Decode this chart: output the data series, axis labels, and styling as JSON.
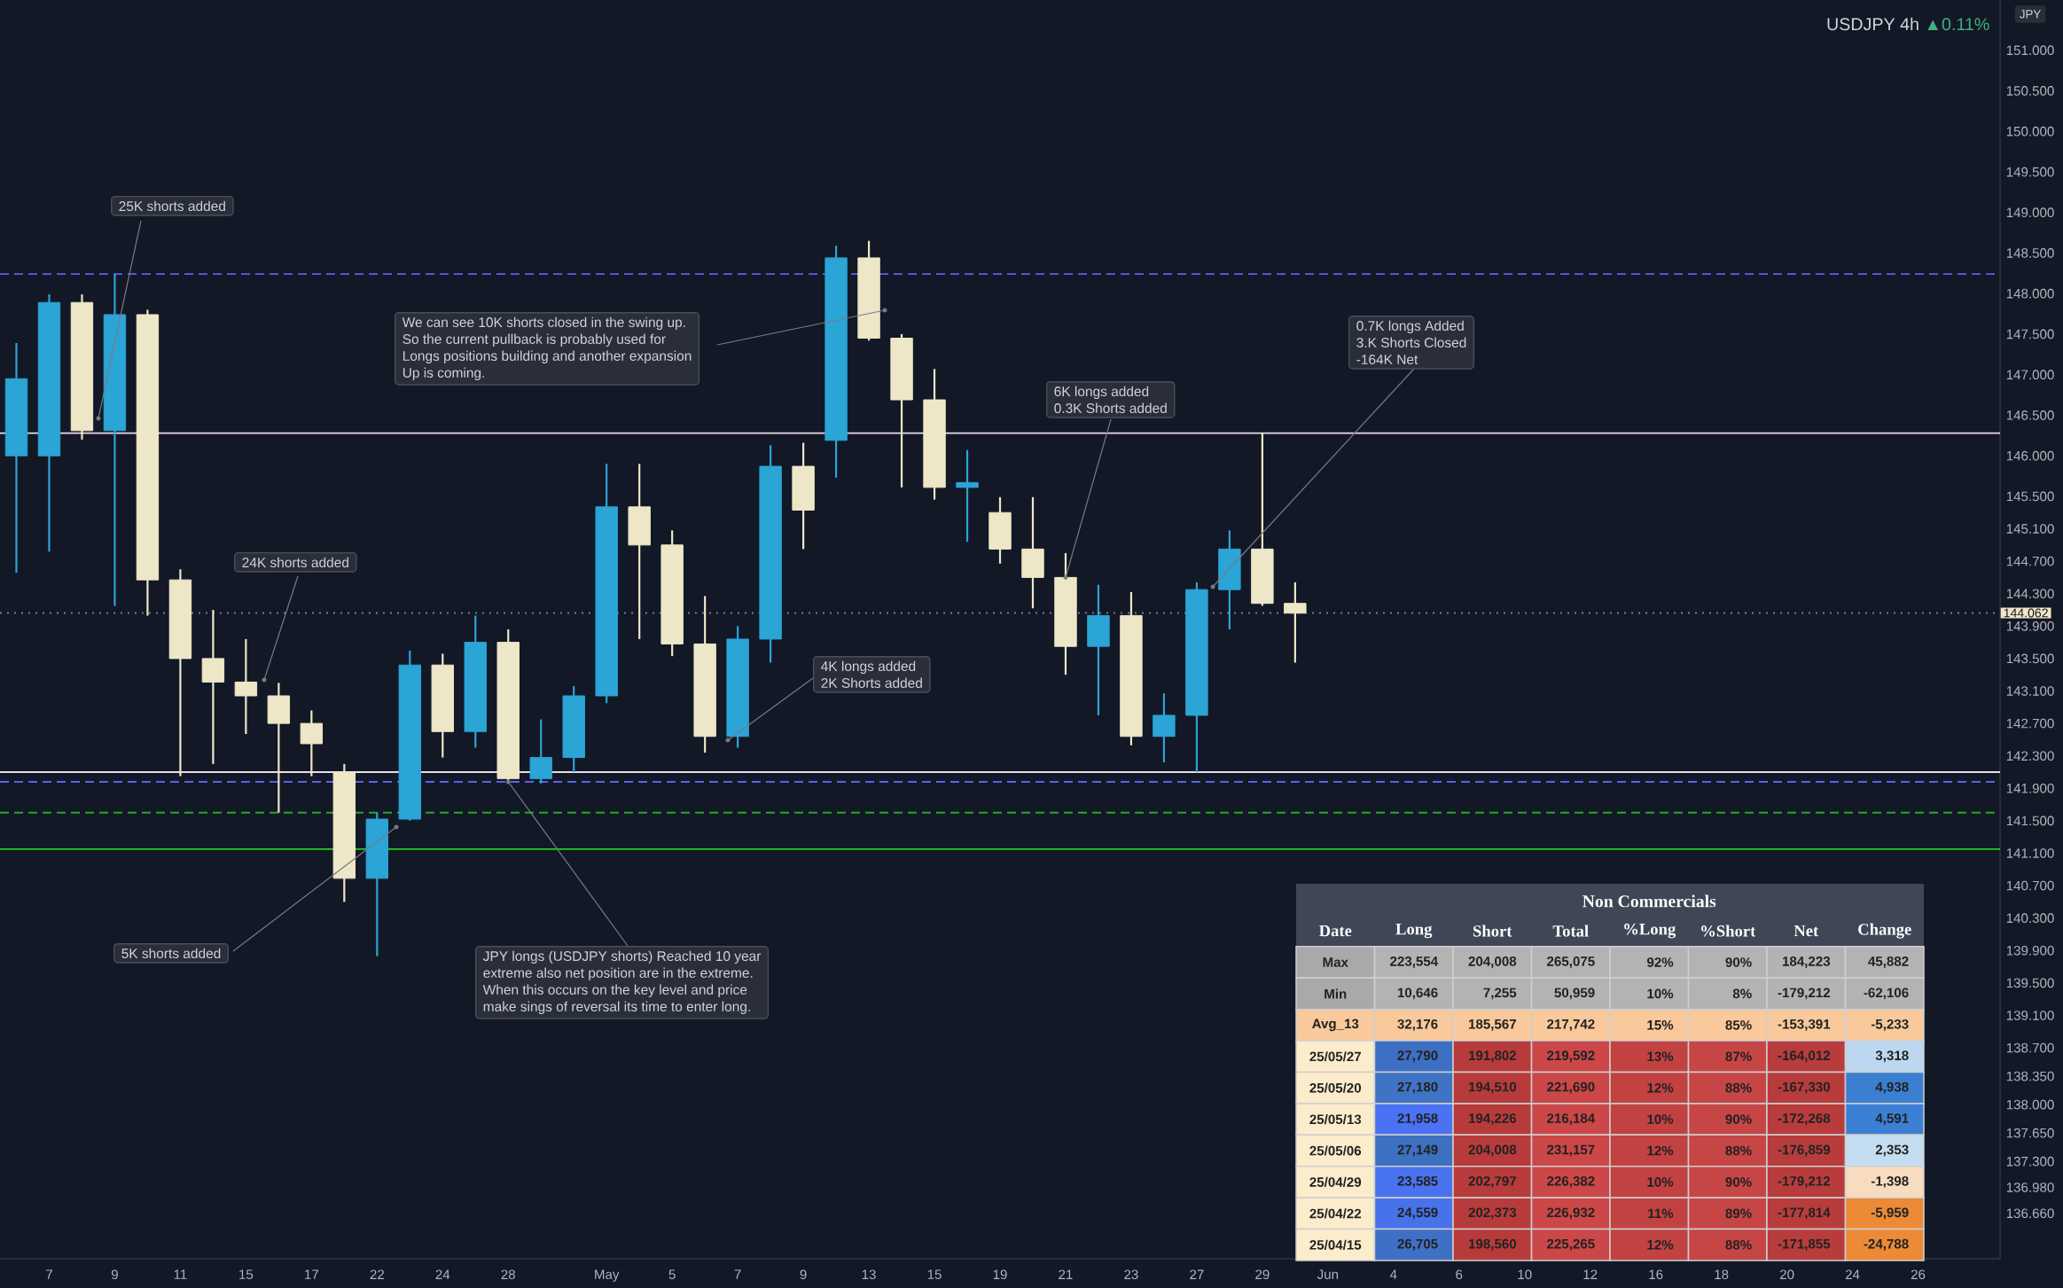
{
  "chart_data": [
    {
      "type": "candlestick",
      "title": "USDJPY 4h",
      "subtitle": "▲0.11%",
      "ylabel": "JPY",
      "categories": [
        null,
        "7",
        null,
        "9",
        null,
        "11",
        null,
        "15",
        null,
        "17",
        null,
        "22",
        null,
        "24",
        null,
        "28",
        null,
        null,
        "May",
        null,
        "5",
        null,
        "7",
        null,
        "9",
        null,
        "13",
        null,
        "15",
        null,
        "19",
        null,
        "21",
        null,
        "23",
        null,
        "27",
        null,
        "29",
        null,
        "Jun",
        null,
        "4",
        null,
        "6",
        null,
        "10",
        null,
        "12",
        null,
        "16",
        null,
        "18",
        null,
        "20",
        null,
        "24",
        null,
        "26",
        null,
        null
      ],
      "ohlc": [
        [
          146.0,
          147.39,
          144.56,
          146.95
        ],
        [
          146.0,
          147.99,
          144.82,
          147.89
        ],
        [
          147.89,
          147.99,
          146.2,
          146.31
        ],
        [
          146.31,
          148.24,
          144.15,
          147.74
        ],
        [
          147.74,
          147.8,
          144.03,
          144.47
        ],
        [
          144.47,
          144.6,
          142.05,
          143.5
        ],
        [
          143.5,
          144.1,
          142.2,
          143.21
        ],
        [
          143.21,
          143.74,
          142.57,
          143.04
        ],
        [
          143.04,
          143.2,
          141.6,
          142.7
        ],
        [
          142.7,
          142.86,
          142.05,
          142.45
        ],
        [
          142.1,
          142.2,
          140.5,
          140.79
        ],
        [
          140.79,
          141.6,
          139.83,
          141.52
        ],
        [
          141.52,
          143.6,
          141.5,
          143.42
        ],
        [
          143.42,
          143.56,
          142.28,
          142.6
        ],
        [
          142.6,
          144.03,
          142.4,
          143.7
        ],
        [
          143.7,
          143.86,
          141.96,
          142.02
        ],
        [
          142.02,
          142.75,
          141.96,
          142.28
        ],
        [
          142.28,
          143.16,
          142.1,
          143.04
        ],
        [
          143.04,
          145.9,
          142.95,
          145.37
        ],
        [
          145.37,
          145.9,
          143.74,
          144.9
        ],
        [
          144.9,
          145.08,
          143.53,
          143.68
        ],
        [
          143.68,
          144.27,
          142.34,
          142.54
        ],
        [
          142.54,
          143.9,
          142.4,
          143.74
        ],
        [
          143.74,
          146.13,
          143.45,
          145.87
        ],
        [
          145.87,
          146.16,
          144.85,
          145.33
        ],
        [
          146.19,
          148.59,
          145.73,
          148.44
        ],
        [
          148.44,
          148.65,
          147.42,
          147.45
        ],
        [
          147.45,
          147.5,
          145.61,
          146.69
        ],
        [
          146.69,
          147.07,
          145.46,
          145.61
        ],
        [
          145.61,
          146.07,
          144.94,
          145.67
        ],
        [
          145.3,
          145.49,
          144.67,
          144.85
        ],
        [
          144.85,
          145.49,
          144.12,
          144.5
        ],
        [
          144.5,
          144.8,
          143.3,
          143.65
        ],
        [
          143.65,
          144.41,
          142.8,
          144.03
        ],
        [
          144.03,
          144.32,
          142.43,
          142.54
        ],
        [
          142.54,
          143.07,
          142.22,
          142.8
        ],
        [
          142.8,
          144.44,
          142.1,
          144.35
        ],
        [
          144.35,
          145.08,
          143.86,
          144.85
        ],
        [
          144.85,
          146.28,
          144.15,
          144.18
        ],
        [
          144.18,
          144.44,
          143.45,
          144.06
        ],
        null,
        null,
        null,
        null,
        null,
        null,
        null,
        null,
        null,
        null,
        null,
        null,
        null,
        null,
        null,
        null,
        null,
        null,
        null,
        null,
        null
      ],
      "colors": [
        "#2ba4d6",
        "#2ba4d6",
        "#ede7c8",
        "#2ba4d6",
        "#ede7c8",
        "#ede7c8",
        "#ede7c8",
        "#ede7c8",
        "#ede7c8",
        "#ede7c8",
        "#ede7c8",
        "#2ba4d6",
        "#2ba4d6",
        "#ede7c8",
        "#2ba4d6",
        "#ede7c8",
        "#2ba4d6",
        "#2ba4d6",
        "#2ba4d6",
        "#ede7c8",
        "#ede7c8",
        "#ede7c8",
        "#2ba4d6",
        "#2ba4d6",
        "#ede7c8",
        "#2ba4d6",
        "#ede7c8",
        "#ede7c8",
        "#ede7c8",
        "#2ba4d6",
        "#ede7c8",
        "#ede7c8",
        "#ede7c8",
        "#2ba4d6",
        "#ede7c8",
        "#2ba4d6",
        "#2ba4d6",
        "#2ba4d6",
        "#ede7c8",
        "#ede7c8",
        null,
        null,
        null,
        null,
        null,
        null,
        null,
        null,
        null,
        null,
        null,
        null,
        null,
        null,
        null,
        null,
        null,
        null,
        null,
        null,
        null
      ],
      "ylim": [
        136.1,
        151.62
      ],
      "yticks": [
        {
          "value": 151.0,
          "label": "151.000"
        },
        {
          "value": 150.5,
          "label": "150.500"
        },
        {
          "value": 150.0,
          "label": "150.000"
        },
        {
          "value": 149.5,
          "label": "149.500"
        },
        {
          "value": 149.0,
          "label": "149.000"
        },
        {
          "value": 148.5,
          "label": "148.500"
        },
        {
          "value": 148.0,
          "label": "148.000"
        },
        {
          "value": 147.5,
          "label": "147.500"
        },
        {
          "value": 147.0,
          "label": "147.000"
        },
        {
          "value": 146.5,
          "label": "146.500"
        },
        {
          "value": 146.0,
          "label": "146.000"
        },
        {
          "value": 145.5,
          "label": "145.500"
        },
        {
          "value": 145.1,
          "label": "145.100"
        },
        {
          "value": 144.7,
          "label": "144.700"
        },
        {
          "value": 144.3,
          "label": "144.300"
        },
        {
          "value": 143.9,
          "label": "143.900"
        },
        {
          "value": 143.5,
          "label": "143.500"
        },
        {
          "value": 143.1,
          "label": "143.100"
        },
        {
          "value": 142.7,
          "label": "142.700"
        },
        {
          "value": 142.3,
          "label": "142.300"
        },
        {
          "value": 141.9,
          "label": "141.900"
        },
        {
          "value": 141.5,
          "label": "141.500"
        },
        {
          "value": 141.1,
          "label": "141.100"
        },
        {
          "value": 140.7,
          "label": "140.700"
        },
        {
          "value": 140.3,
          "label": "140.300"
        },
        {
          "value": 139.9,
          "label": "139.900"
        },
        {
          "value": 139.5,
          "label": "139.500"
        },
        {
          "value": 139.1,
          "label": "139.100"
        },
        {
          "value": 138.7,
          "label": "138.700"
        },
        {
          "value": 138.35,
          "label": "138.350"
        },
        {
          "value": 138.0,
          "label": "138.000"
        },
        {
          "value": 137.65,
          "label": "137.650"
        },
        {
          "value": 137.3,
          "label": "137.300"
        },
        {
          "value": 136.98,
          "label": "136.980"
        },
        {
          "value": 136.66,
          "label": "136.660"
        }
      ],
      "ref_lines": [
        {
          "axis": "y",
          "value": 148.24,
          "color": "#5d5fef",
          "line_style": "dashed"
        },
        {
          "axis": "y",
          "value": 141.98,
          "color": "#5d5fef",
          "line_style": "dashed"
        },
        {
          "axis": "y",
          "value": 141.6,
          "color": "#22aa22",
          "line_style": "dashed"
        },
        {
          "axis": "y",
          "value": 141.15,
          "color": "#22cc22",
          "line_style": "solid"
        },
        {
          "axis": "y",
          "value": 146.28,
          "color": "#eadcea",
          "line_style": "solid"
        },
        {
          "axis": "y",
          "value": 142.1,
          "color": "#eadcea",
          "line_style": "solid"
        },
        {
          "axis": "y",
          "value": 144.062,
          "label": "144.062",
          "color": "#787b86",
          "line_style": "dotted"
        }
      ],
      "annotations": [
        "25K shorts added",
        "We can see 10K shorts closed in the swing up.",
        "So the current pullback is probably used for",
        "Longs positions building and another expansion",
        "Up is coming.",
        "0.7K longs Added",
        "3.K Shorts Closed",
        "-164K Net",
        "6K longs added",
        {
          "text": "0.3K Shorts added",
          "x": "21",
          "y": 144.5
        },
        "24K shorts added",
        "4K longs added",
        "2K Shorts added",
        "5K shorts added",
        {
          "text": "JPY longs (USDJPY shorts) Reached 10 year",
          "x": "28",
          "y": 141.98
        },
        "extreme also net position are in the extreme.",
        "When this occurs on the key level and price",
        "make sings of reversal its time to enter long."
      ]
    },
    {
      "type": "other",
      "title": "Non Commercials",
      "categories": [
        "Date",
        "Long",
        "Short",
        "Total",
        "%Long",
        "%Short",
        "Net",
        "Change"
      ],
      "y_categories": [
        "Max",
        "Min",
        "Avg_13",
        "25/05/27",
        "25/05/20",
        "25/05/13",
        "25/05/06",
        "25/04/29",
        "25/04/22",
        "25/04/15"
      ],
      "cell_labels": [
        [
          "223,554",
          "204,008",
          "265,075",
          "92%",
          "90%",
          "184,223",
          "45,882"
        ],
        [
          "10,646",
          "7,255",
          "50,959",
          "10%",
          "8%",
          "-179,212",
          "-62,106"
        ],
        [
          "32,176",
          "185,567",
          "217,742",
          "15%",
          "85%",
          "-153,391",
          "-5,233"
        ],
        [
          "27,790",
          "191,802",
          "219,592",
          "13%",
          "87%",
          "-164,012",
          "3,318"
        ],
        [
          "27,180",
          "194,510",
          "221,690",
          "12%",
          "88%",
          "-167,330",
          "4,938"
        ],
        [
          "21,958",
          "194,226",
          "216,184",
          "10%",
          "90%",
          "-172,268",
          "4,591"
        ],
        [
          "27,149",
          "204,008",
          "231,157",
          "12%",
          "88%",
          "-176,859",
          "2,353"
        ],
        [
          "23,585",
          "202,797",
          "226,382",
          "10%",
          "90%",
          "-179,212",
          "-1,398"
        ],
        [
          "24,559",
          "202,373",
          "226,932",
          "11%",
          "89%",
          "-177,814",
          "-5,959"
        ],
        [
          "26,705",
          "198,560",
          "225,265",
          "12%",
          "88%",
          "-171,855",
          "-24,788"
        ]
      ],
      "colors": [
        [
          "#a9a9a9",
          "#b3b3b3",
          "#b3b3b3",
          "#b3b3b3",
          "#b3b3b3",
          "#b3b3b3",
          "#b3b3b3",
          "#b3b3b3"
        ],
        [
          "#a9a9a9",
          "#b3b3b3",
          "#b3b3b3",
          "#b3b3b3",
          "#b3b3b3",
          "#b3b3b3",
          "#b3b3b3",
          "#b3b3b3"
        ],
        [
          "#f9c99b",
          "#f9c99b",
          "#f9c99b",
          "#f9c99b",
          "#f9c99b",
          "#f9c99b",
          "#f9c99b",
          "#f9c99b"
        ],
        [
          "#fbeccb",
          "#3d6fc2",
          "#b83b3b",
          "#cc4747",
          "#c24242",
          "#c64646",
          "#b83c3c",
          "#bcd7ef"
        ],
        [
          "#fbeccb",
          "#3f74c4",
          "#b83b3b",
          "#cc4747",
          "#c24242",
          "#c64646",
          "#b83c3c",
          "#3b7fd1"
        ],
        [
          "#fbeccb",
          "#4a72f2",
          "#b83b3b",
          "#cc4747",
          "#c24242",
          "#c64646",
          "#b83c3c",
          "#3b80d4"
        ],
        [
          "#fbeccb",
          "#3d70c0",
          "#b83b3b",
          "#cc4747",
          "#c24242",
          "#c64646",
          "#b83c3c",
          "#c5ddf1"
        ],
        [
          "#fbeccb",
          "#4872ee",
          "#b83b3b",
          "#cc4747",
          "#c24242",
          "#c64646",
          "#b83c3c",
          "#f8dcbf"
        ],
        [
          "#fbeccb",
          "#4772ea",
          "#b83b3b",
          "#cc4747",
          "#c24242",
          "#c64646",
          "#b83c3c",
          "#ec8a36"
        ],
        [
          "#fbeccb",
          "#3f70c6",
          "#b83b3b",
          "#cc4747",
          "#c24242",
          "#c64646",
          "#b83c3c",
          "#ec8a36"
        ]
      ]
    }
  ]
}
